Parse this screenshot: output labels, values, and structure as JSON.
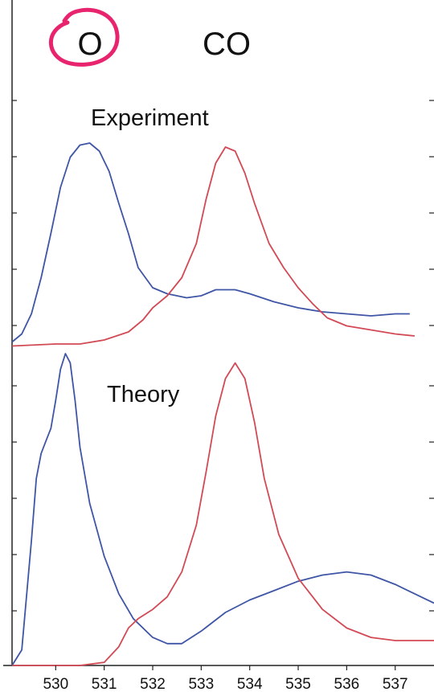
{
  "colors": {
    "blue": "#3f55a5",
    "red": "#d24a55",
    "highlight": "#e8246e",
    "axis": "#222222"
  },
  "labels": {
    "o": "O",
    "co": "CO",
    "experiment": "Experiment",
    "theory": "Theory"
  },
  "chart_data": {
    "type": "line",
    "xlabel": "",
    "ylabel": "",
    "x_ticks": [
      530,
      531,
      532,
      533,
      534,
      535,
      536,
      537
    ],
    "xlim": [
      529.1,
      537.8
    ],
    "ylim": [
      0,
      1
    ],
    "annotation": "O label circled in pink",
    "panels": [
      {
        "name": "Experiment",
        "series": [
          {
            "color": "blue",
            "x": [
              529.1,
              529.3,
              529.5,
              529.7,
              529.9,
              530.1,
              530.3,
              530.5,
              530.7,
              530.9,
              531.1,
              531.3,
              531.5,
              531.7,
              532.0,
              532.3,
              532.7,
              533.0,
              533.3,
              533.7,
              534.0,
              534.5,
              535.0,
              535.5,
              536.0,
              536.5,
              537.0,
              537.3
            ],
            "y": [
              0.01,
              0.05,
              0.15,
              0.33,
              0.55,
              0.78,
              0.93,
              0.99,
              1.0,
              0.96,
              0.86,
              0.7,
              0.55,
              0.38,
              0.28,
              0.25,
              0.23,
              0.24,
              0.27,
              0.27,
              0.25,
              0.21,
              0.18,
              0.16,
              0.15,
              0.14,
              0.15,
              0.15
            ]
          },
          {
            "color": "red",
            "x": [
              529.1,
              530.0,
              530.5,
              531.0,
              531.5,
              531.8,
              532.0,
              532.3,
              532.6,
              532.9,
              533.1,
              533.3,
              533.5,
              533.7,
              533.9,
              534.1,
              534.4,
              534.7,
              535.0,
              535.3,
              535.6,
              536.0,
              536.5,
              537.0,
              537.4
            ],
            "y": [
              -0.01,
              0.0,
              0.0,
              0.02,
              0.06,
              0.12,
              0.18,
              0.24,
              0.33,
              0.5,
              0.72,
              0.9,
              0.98,
              0.96,
              0.85,
              0.7,
              0.5,
              0.38,
              0.28,
              0.2,
              0.13,
              0.09,
              0.07,
              0.05,
              0.04
            ]
          }
        ]
      },
      {
        "name": "Theory",
        "series": [
          {
            "color": "blue",
            "x": [
              529.1,
              529.3,
              529.5,
              529.6,
              529.7,
              529.8,
              529.9,
              530.0,
              530.1,
              530.2,
              530.3,
              530.4,
              530.5,
              530.7,
              531.0,
              531.3,
              531.6,
              532.0,
              532.3,
              532.6,
              533.0,
              533.5,
              534.0,
              534.5,
              535.0,
              535.5,
              536.0,
              536.5,
              537.0,
              537.8
            ],
            "y": [
              0.0,
              0.05,
              0.4,
              0.6,
              0.68,
              0.72,
              0.76,
              0.85,
              0.95,
              1.0,
              0.97,
              0.85,
              0.7,
              0.52,
              0.35,
              0.23,
              0.15,
              0.09,
              0.07,
              0.07,
              0.11,
              0.17,
              0.21,
              0.24,
              0.27,
              0.29,
              0.3,
              0.29,
              0.26,
              0.2
            ]
          },
          {
            "color": "red",
            "x": [
              529.1,
              530.5,
              531.0,
              531.3,
              531.5,
              531.7,
              532.0,
              532.3,
              532.6,
              532.9,
              533.1,
              533.3,
              533.5,
              533.7,
              533.9,
              534.1,
              534.3,
              534.6,
              535.0,
              535.5,
              536.0,
              536.5,
              537.0,
              537.8
            ],
            "y": [
              0.0,
              0.0,
              0.01,
              0.06,
              0.12,
              0.15,
              0.18,
              0.22,
              0.3,
              0.45,
              0.62,
              0.8,
              0.92,
              0.97,
              0.92,
              0.78,
              0.6,
              0.42,
              0.28,
              0.18,
              0.12,
              0.09,
              0.08,
              0.08
            ]
          }
        ]
      }
    ]
  }
}
